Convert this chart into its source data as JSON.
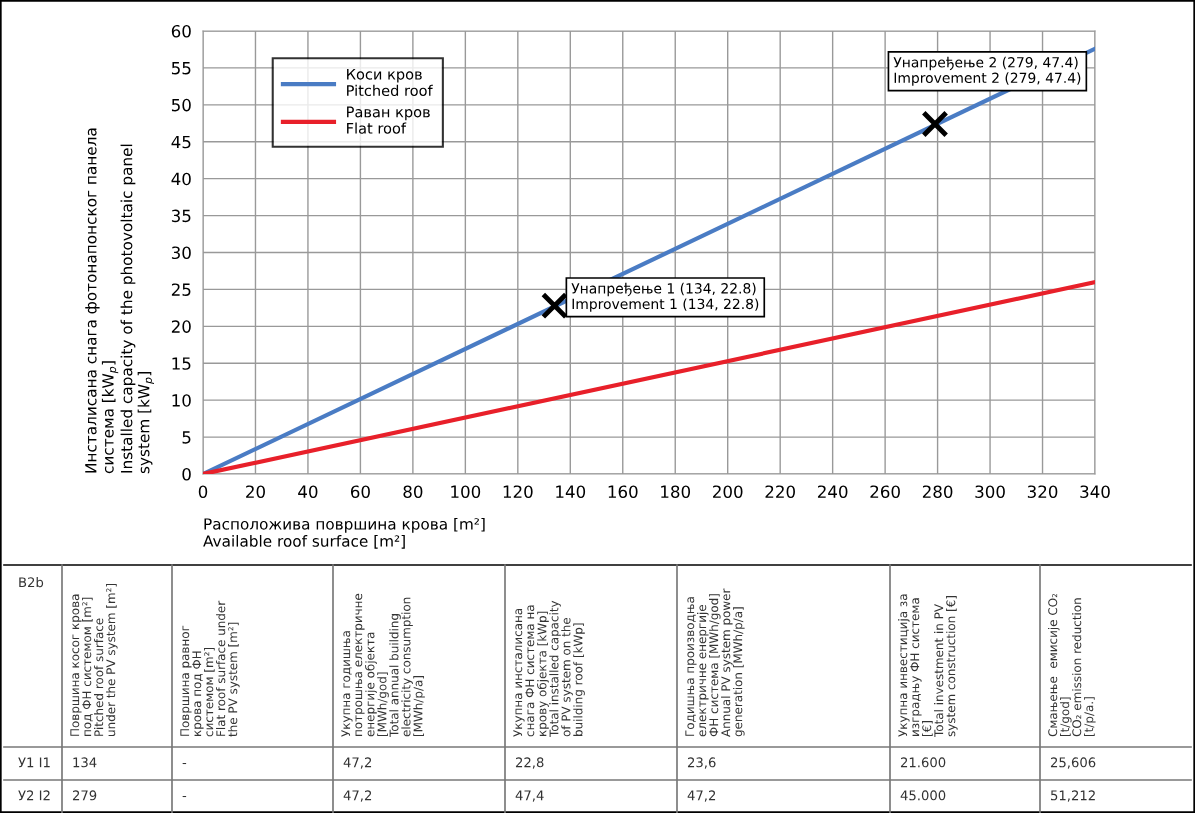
{
  "chart_data": {
    "type": "line",
    "xlabel": "Расположива површина крова [m²]\nAvailable roof surface [m²]",
    "ylabel": "Инсталисана снага фотонапонског панела\nсистема [kW$_{p}$]\nInstalled capacity of the photovoltaic panel\nsystem [kW$_{p}$]",
    "x": [
      0,
      340
    ],
    "series": [
      {
        "name": "Коси кров\nPitched roof",
        "color": "#4a7cc4",
        "values": [
          0,
          57.6
        ]
      },
      {
        "name": "Раван кров\nFlat roof",
        "color": "#e8202a",
        "values": [
          0,
          26.0
        ]
      },
      {
        "type": "scatter",
        "color": "#000000",
        "marker": "cross",
        "x": [
          134,
          279
        ],
        "values": [
          22.8,
          47.4
        ]
      }
    ],
    "xlim": [
      0,
      340
    ],
    "xticks": [
      0,
      20,
      40,
      60,
      80,
      100,
      120,
      140,
      160,
      180,
      200,
      220,
      240,
      260,
      280,
      300,
      320,
      340
    ],
    "ylim": [
      0,
      60
    ],
    "yticks": [
      0,
      5,
      10,
      15,
      20,
      25,
      30,
      35,
      40,
      45,
      50,
      55,
      60
    ],
    "grid": true,
    "legend": "top left",
    "annotations": [
      {
        "text": "Унапређење 1 (134, 22.8)\nImprovement 1 (134, 22.8)",
        "x": 134,
        "y": 22.8
      },
      {
        "text": "Унапређење 2 (279, 47.4)\nImprovement 2 (279, 47.4)",
        "x": 279,
        "y": 47.4
      },
      "B2b",
      "Површина косог крова\nпод ФН системом [m²]\nPitched roof surface\nunder the PV system [m²]",
      "Површина равног\nкрова под ФН\nсистемом [m²]\nFlat roof surface under\nthe PV system [m²]",
      "Укупна годишња\nпотрошња електричне\nенергије објекта\n[MWh/god]\nTotal annual building\nelectricity consumption\n[MWh/p/a]",
      "Укупна инсталисана\nснага ФН система на\nкрову објекта [kWp]\nTotal installed capacity\nof PV system on the\nbuilding roof [kWp]",
      "Годишња производња\nелектричне енергије\nФН система [MWh/god]\nAnnual PV system power\ngeneration [MWh/p/a]",
      "Укупна инвестиција за\nизградњу ФН система\n[€]\nTotal investment in PV\nsystem construction [€]",
      "Смањење  емисије CO₂\n[t/god]\nCO₂ emission reduction\n[t/p/a.]",
      "У1 I1",
      "134",
      "-",
      "47,2",
      "22,8",
      "23,6",
      "21.600",
      "25,606",
      "У2 I2",
      "279",
      "-",
      "47,2",
      "47,4",
      "47,2",
      "45.000",
      "51,212"
    ]
  }
}
